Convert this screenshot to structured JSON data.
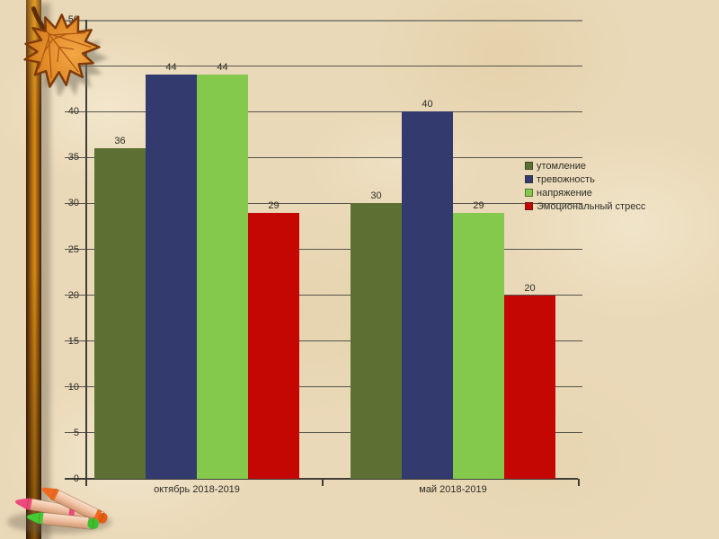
{
  "app": {
    "type": "presentation-slide",
    "background_color": "#ead9b8"
  },
  "decorations": {
    "maple_leaf": {
      "name": "autumn-maple-leaf",
      "fill": "#e08a26",
      "outline": "#7e3a0a"
    },
    "branch_stick": {
      "name": "vertical-branch",
      "fill": "#c2790f",
      "edge": "#38200a"
    },
    "crayons": [
      {
        "name": "orange-crayon",
        "color": "#ef6a1e"
      },
      {
        "name": "pink-crayon",
        "color": "#ef487c"
      },
      {
        "name": "green-crayon",
        "color": "#44cc35"
      }
    ]
  },
  "chart_data": {
    "type": "bar",
    "title": "",
    "categories": [
      "октябрь 2018-2019",
      "май 2018-2019"
    ],
    "series": [
      {
        "name": "утомление",
        "color": "#5d7033",
        "values": [
          36,
          30
        ]
      },
      {
        "name": "тревожность",
        "color": "#333a6d",
        "values": [
          44,
          40
        ]
      },
      {
        "name": "напряжение",
        "color": "#85c94c",
        "values": [
          44,
          29
        ]
      },
      {
        "name": "Эмоциональный стресс",
        "color": "#c40703",
        "values": [
          29,
          20
        ]
      }
    ],
    "ylim": [
      0,
      50
    ],
    "ytick_step": 5,
    "grid": true,
    "legend_position": "right",
    "value_labels": true,
    "xlabel": "",
    "ylabel": ""
  }
}
